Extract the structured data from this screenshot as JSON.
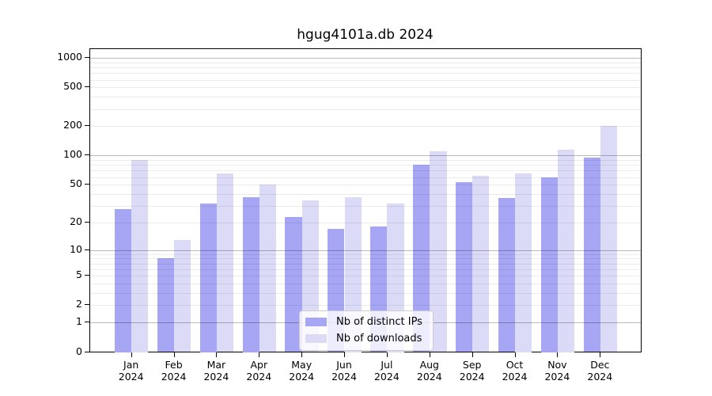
{
  "chart_data": {
    "type": "bar",
    "title": "hgug4101a.db 2024",
    "categories": [
      "Jan",
      "Feb",
      "Mar",
      "Apr",
      "May",
      "Jun",
      "Jul",
      "Aug",
      "Sep",
      "Oct",
      "Nov",
      "Dec"
    ],
    "x_tick_second_line": "2024",
    "series": [
      {
        "key": "distinct-ips",
        "name": "Nb of distinct IPs",
        "color": "#a6a6f4",
        "values": [
          28,
          8,
          32,
          37,
          23,
          17,
          18,
          80,
          53,
          36,
          60,
          96
        ]
      },
      {
        "key": "downloads",
        "name": "Nb of downloads",
        "color": "#dbdbf8",
        "values": [
          90,
          13,
          65,
          50,
          34,
          37,
          32,
          110,
          62,
          66,
          115,
          200
        ]
      }
    ],
    "yscale": "log10(1+x)",
    "ylim": [
      0,
      1230
    ],
    "yticks": [
      0,
      1,
      2,
      5,
      10,
      20,
      50,
      100,
      200,
      500,
      1000
    ],
    "major_gridlines": [
      1,
      10,
      100,
      1000
    ],
    "minor_gridlines": [
      2,
      3,
      4,
      5,
      6,
      7,
      8,
      9,
      20,
      30,
      40,
      50,
      60,
      70,
      80,
      90,
      200,
      300,
      400,
      500,
      600,
      700,
      800,
      900
    ],
    "grid": true,
    "legend_position": "lower center",
    "colors": {
      "bar_distinct_ips": "#a6a6f4",
      "bar_downloads": "#dbdbf8",
      "axis": "#000000",
      "grid_major": "#bababa",
      "grid_minor": "#ececec",
      "legend_border": "#cccccc"
    }
  }
}
